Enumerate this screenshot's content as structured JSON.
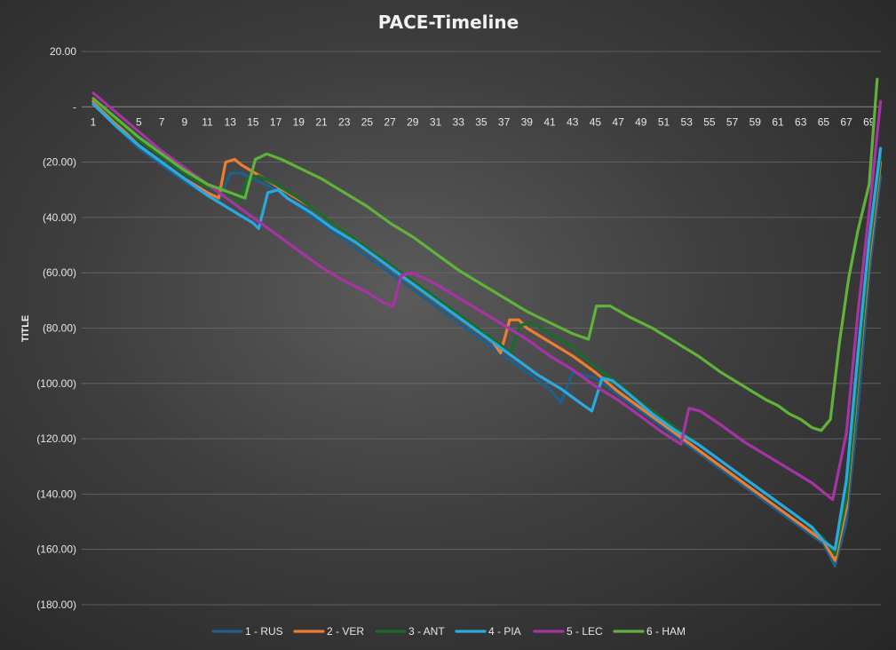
{
  "chart_data": {
    "type": "line",
    "title": "PACE-Timeline",
    "xlabel": "",
    "ylabel": "TITLE",
    "ylim": [
      -180,
      20
    ],
    "y_ticks": [
      20,
      0,
      -20,
      -40,
      -60,
      -80,
      -100,
      -120,
      -140,
      -160,
      -180
    ],
    "y_tick_labels": [
      "20.00",
      "-",
      "(20.00)",
      "(40.00)",
      "(60.00)",
      "(80.00)",
      "(100.00)",
      "(120.00)",
      "(140.00)",
      "(160.00)",
      "(180.00)"
    ],
    "x_ticks": [
      1,
      3,
      5,
      7,
      9,
      11,
      13,
      15,
      17,
      19,
      21,
      23,
      25,
      27,
      29,
      31,
      33,
      35,
      37,
      39,
      41,
      43,
      45,
      47,
      49,
      51,
      53,
      55,
      57,
      59,
      61,
      63,
      65,
      67,
      69
    ],
    "xlim": [
      1,
      71
    ],
    "grid": true,
    "legend_position": "bottom",
    "series": [
      {
        "name": "1 - RUS",
        "color": "#1f5f8b",
        "points": [
          [
            1,
            2
          ],
          [
            3,
            -7
          ],
          [
            5,
            -15
          ],
          [
            7,
            -21
          ],
          [
            9,
            -27
          ],
          [
            11,
            -32
          ],
          [
            12,
            -34
          ],
          [
            13,
            -24
          ],
          [
            14,
            -24
          ],
          [
            15,
            -26
          ],
          [
            17,
            -30
          ],
          [
            19,
            -36
          ],
          [
            21,
            -42
          ],
          [
            23,
            -48
          ],
          [
            25,
            -54
          ],
          [
            27,
            -60
          ],
          [
            29,
            -66
          ],
          [
            31,
            -72
          ],
          [
            33,
            -78
          ],
          [
            35,
            -84
          ],
          [
            37,
            -90
          ],
          [
            39,
            -96
          ],
          [
            41,
            -102
          ],
          [
            42,
            -107
          ],
          [
            43,
            -96
          ],
          [
            45,
            -98
          ],
          [
            47,
            -104
          ],
          [
            49,
            -110
          ],
          [
            51,
            -116
          ],
          [
            53,
            -122
          ],
          [
            55,
            -128
          ],
          [
            57,
            -134
          ],
          [
            59,
            -140
          ],
          [
            61,
            -146
          ],
          [
            63,
            -152
          ],
          [
            65,
            -158
          ],
          [
            66,
            -166
          ],
          [
            67,
            -150
          ],
          [
            68,
            -110
          ],
          [
            69,
            -60
          ],
          [
            70,
            -25
          ]
        ]
      },
      {
        "name": "2 - VER",
        "color": "#ed7d31",
        "points": [
          [
            1,
            2
          ],
          [
            3,
            -6
          ],
          [
            5,
            -14
          ],
          [
            7,
            -20
          ],
          [
            9,
            -26
          ],
          [
            11,
            -31
          ],
          [
            12,
            -33
          ],
          [
            12.6,
            -20
          ],
          [
            13.4,
            -19
          ],
          [
            14,
            -21
          ],
          [
            16,
            -26
          ],
          [
            18,
            -31
          ],
          [
            20,
            -36
          ],
          [
            22,
            -42
          ],
          [
            24,
            -48
          ],
          [
            26,
            -54
          ],
          [
            28,
            -61
          ],
          [
            30,
            -67
          ],
          [
            32,
            -73
          ],
          [
            34,
            -79
          ],
          [
            36,
            -85
          ],
          [
            36.7,
            -89
          ],
          [
            37.5,
            -77
          ],
          [
            38.3,
            -77
          ],
          [
            39,
            -80
          ],
          [
            41,
            -85
          ],
          [
            43,
            -90
          ],
          [
            45,
            -96
          ],
          [
            47,
            -103
          ],
          [
            49,
            -109
          ],
          [
            51,
            -115
          ],
          [
            53,
            -121
          ],
          [
            55,
            -127
          ],
          [
            57,
            -133
          ],
          [
            59,
            -139
          ],
          [
            61,
            -145
          ],
          [
            63,
            -151
          ],
          [
            65,
            -157
          ],
          [
            66,
            -164
          ],
          [
            67,
            -145
          ],
          [
            68,
            -100
          ],
          [
            69,
            -55
          ],
          [
            70,
            -20
          ]
        ]
      },
      {
        "name": "3 - ANT",
        "color": "#1b6b2a",
        "points": [
          [
            1,
            3
          ],
          [
            3,
            -5
          ],
          [
            5,
            -12
          ],
          [
            7,
            -18
          ],
          [
            9,
            -24
          ],
          [
            11,
            -29
          ],
          [
            13,
            -33
          ],
          [
            13.7,
            -35
          ],
          [
            14.5,
            -26
          ],
          [
            15.5,
            -25
          ],
          [
            17,
            -28
          ],
          [
            19,
            -33
          ],
          [
            21,
            -39
          ],
          [
            23,
            -45
          ],
          [
            25,
            -51
          ],
          [
            27,
            -57
          ],
          [
            29,
            -63
          ],
          [
            31,
            -69
          ],
          [
            33,
            -75
          ],
          [
            35,
            -81
          ],
          [
            37,
            -87
          ],
          [
            37.6,
            -89
          ],
          [
            38.4,
            -79
          ],
          [
            39.5,
            -78
          ],
          [
            41,
            -82
          ],
          [
            43,
            -87
          ],
          [
            45,
            -94
          ],
          [
            47,
            -100
          ],
          [
            49,
            -107
          ],
          [
            51,
            -113
          ],
          [
            53,
            -119
          ],
          [
            55,
            -125
          ],
          [
            57,
            -131
          ],
          [
            59,
            -137
          ],
          [
            61,
            -143
          ],
          [
            63,
            -149
          ],
          [
            65,
            -156
          ],
          [
            66,
            -162
          ],
          [
            67,
            -142
          ],
          [
            68,
            -98
          ],
          [
            69,
            -52
          ],
          [
            70,
            -18
          ]
        ]
      },
      {
        "name": "4 - PIA",
        "color": "#29a9e1",
        "points": [
          [
            1,
            1
          ],
          [
            3,
            -7
          ],
          [
            5,
            -14
          ],
          [
            7,
            -20
          ],
          [
            9,
            -26
          ],
          [
            11,
            -32
          ],
          [
            13,
            -37
          ],
          [
            15,
            -42
          ],
          [
            15.5,
            -44
          ],
          [
            16.3,
            -31
          ],
          [
            17.2,
            -30
          ],
          [
            18,
            -33
          ],
          [
            20,
            -38
          ],
          [
            22,
            -44
          ],
          [
            24,
            -49
          ],
          [
            26,
            -55
          ],
          [
            28,
            -61
          ],
          [
            30,
            -67
          ],
          [
            32,
            -73
          ],
          [
            34,
            -79
          ],
          [
            36,
            -85
          ],
          [
            38,
            -91
          ],
          [
            40,
            -97
          ],
          [
            42,
            -102
          ],
          [
            44,
            -108
          ],
          [
            44.7,
            -110
          ],
          [
            45.6,
            -98
          ],
          [
            46.5,
            -99
          ],
          [
            48,
            -104
          ],
          [
            50,
            -111
          ],
          [
            52,
            -117
          ],
          [
            54,
            -122
          ],
          [
            56,
            -128
          ],
          [
            58,
            -134
          ],
          [
            60,
            -140
          ],
          [
            62,
            -146
          ],
          [
            64,
            -152
          ],
          [
            65,
            -157
          ],
          [
            66,
            -160
          ],
          [
            67,
            -135
          ],
          [
            68,
            -90
          ],
          [
            69,
            -48
          ],
          [
            70,
            -15
          ]
        ]
      },
      {
        "name": "5 - LEC",
        "color": "#a733a5",
        "points": [
          [
            1,
            5
          ],
          [
            3,
            -2
          ],
          [
            5,
            -9
          ],
          [
            7,
            -16
          ],
          [
            9,
            -22
          ],
          [
            11,
            -28
          ],
          [
            13,
            -34
          ],
          [
            15,
            -40
          ],
          [
            17,
            -46
          ],
          [
            19,
            -52
          ],
          [
            21,
            -58
          ],
          [
            23,
            -63
          ],
          [
            25,
            -67
          ],
          [
            26.5,
            -71
          ],
          [
            27.3,
            -72
          ],
          [
            28,
            -61
          ],
          [
            29,
            -60
          ],
          [
            31,
            -64
          ],
          [
            33,
            -69
          ],
          [
            35,
            -74
          ],
          [
            37,
            -79
          ],
          [
            39,
            -84
          ],
          [
            41,
            -90
          ],
          [
            43,
            -95
          ],
          [
            45,
            -101
          ],
          [
            47,
            -106
          ],
          [
            49,
            -112
          ],
          [
            51,
            -118
          ],
          [
            52.5,
            -122
          ],
          [
            53.2,
            -109
          ],
          [
            54.2,
            -110
          ],
          [
            56,
            -115
          ],
          [
            58,
            -121
          ],
          [
            60,
            -126
          ],
          [
            62,
            -131
          ],
          [
            64,
            -136
          ],
          [
            65.2,
            -140
          ],
          [
            65.8,
            -142
          ],
          [
            67,
            -118
          ],
          [
            68,
            -75
          ],
          [
            69,
            -38
          ],
          [
            70,
            2
          ]
        ]
      },
      {
        "name": "6 - HAM",
        "color": "#5fb33a",
        "points": [
          [
            1,
            3
          ],
          [
            3,
            -4
          ],
          [
            5,
            -11
          ],
          [
            7,
            -17
          ],
          [
            9,
            -23
          ],
          [
            11,
            -28
          ],
          [
            13,
            -31
          ],
          [
            14.3,
            -33
          ],
          [
            15.2,
            -19
          ],
          [
            16.2,
            -17
          ],
          [
            17.5,
            -19
          ],
          [
            19,
            -22
          ],
          [
            21,
            -26
          ],
          [
            23,
            -31
          ],
          [
            25,
            -36
          ],
          [
            27,
            -42
          ],
          [
            29,
            -47
          ],
          [
            31,
            -53
          ],
          [
            33,
            -59
          ],
          [
            35,
            -64
          ],
          [
            37,
            -69
          ],
          [
            39,
            -74
          ],
          [
            41,
            -78
          ],
          [
            43,
            -82
          ],
          [
            44.4,
            -84
          ],
          [
            45.1,
            -72
          ],
          [
            46.3,
            -72
          ],
          [
            48,
            -76
          ],
          [
            50,
            -80
          ],
          [
            52,
            -85
          ],
          [
            54,
            -90
          ],
          [
            56,
            -96
          ],
          [
            58,
            -101
          ],
          [
            60,
            -106
          ],
          [
            61,
            -108
          ],
          [
            62,
            -111
          ],
          [
            63,
            -113
          ],
          [
            64,
            -116
          ],
          [
            64.8,
            -117
          ],
          [
            65.6,
            -113
          ],
          [
            66.4,
            -85
          ],
          [
            67.2,
            -62
          ],
          [
            68,
            -45
          ],
          [
            69,
            -28
          ],
          [
            69.7,
            10
          ]
        ]
      }
    ]
  }
}
